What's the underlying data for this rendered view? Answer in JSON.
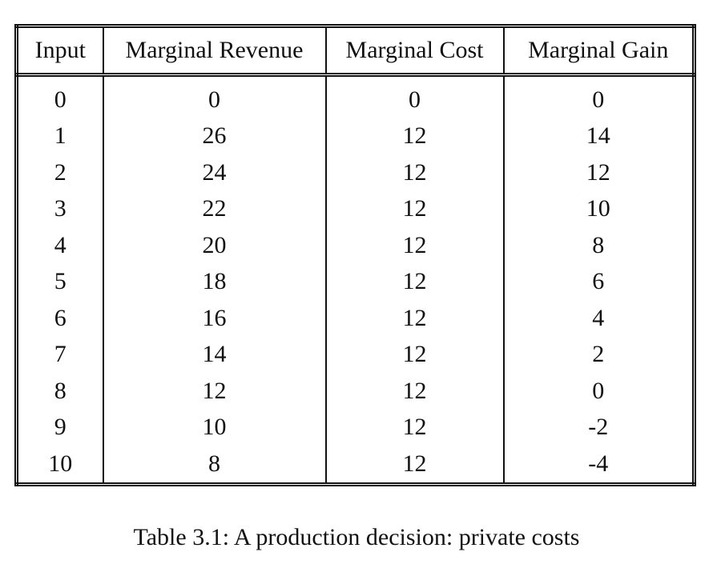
{
  "table": {
    "headers": [
      "Input",
      "Marginal Revenue",
      "Marginal Cost",
      "Marginal Gain"
    ],
    "rows": [
      [
        "0",
        "0",
        "0",
        "0"
      ],
      [
        "1",
        "26",
        "12",
        "14"
      ],
      [
        "2",
        "24",
        "12",
        "12"
      ],
      [
        "3",
        "22",
        "12",
        "10"
      ],
      [
        "4",
        "20",
        "12",
        "8"
      ],
      [
        "5",
        "18",
        "12",
        "6"
      ],
      [
        "6",
        "16",
        "12",
        "4"
      ],
      [
        "7",
        "14",
        "12",
        "2"
      ],
      [
        "8",
        "12",
        "12",
        "0"
      ],
      [
        "9",
        "10",
        "12",
        "-2"
      ],
      [
        "10",
        "8",
        "12",
        "-4"
      ]
    ]
  },
  "caption": "Table 3.1: A production decision: private costs"
}
